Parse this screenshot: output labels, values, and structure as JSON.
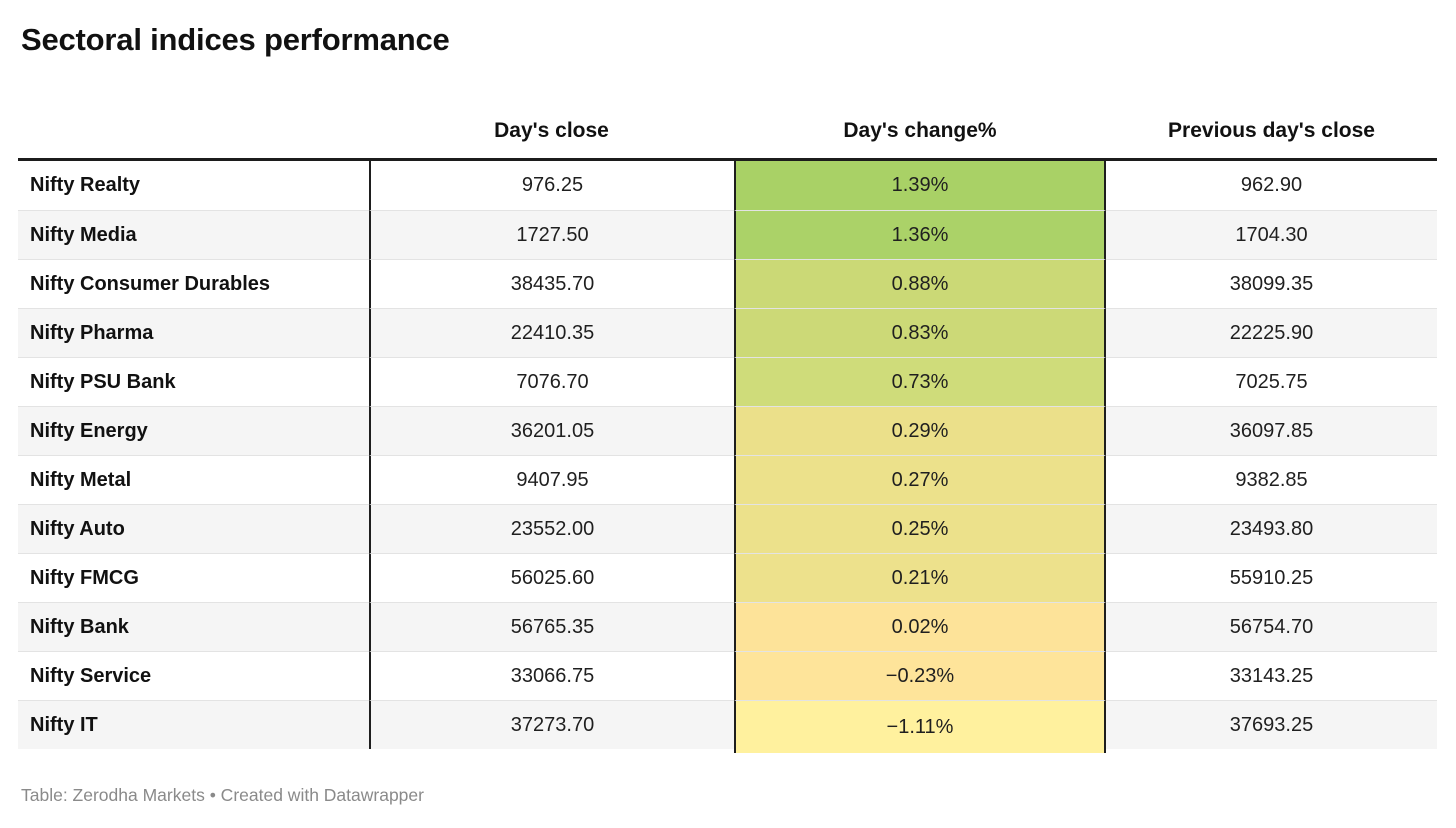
{
  "title": "Sectoral indices performance",
  "footer": "Table: Zerodha Markets • Created with Datawrapper",
  "colors": {
    "header_rule": "#1c1c1c",
    "column_divider": "#1e1e1e",
    "row_alt_bg": "#f5f5f5",
    "row_separator": "#e3e3e3",
    "footer_text": "#8a8a8a"
  },
  "chart_data": {
    "type": "table",
    "title": "Sectoral indices performance",
    "columns": [
      "",
      "Day's close",
      "Day's change%",
      "Previous day's close"
    ],
    "heatmap_column": "Day's change%",
    "rows": [
      {
        "index": "Nifty Realty",
        "days_close": "976.25",
        "days_change_pct": "1.39%",
        "prev_close": "962.90",
        "change_cell_color": "#a9d166"
      },
      {
        "index": "Nifty Media",
        "days_close": "1727.50",
        "days_change_pct": "1.36%",
        "prev_close": "1704.30",
        "change_cell_color": "#abd268"
      },
      {
        "index": "Nifty Consumer Durables",
        "days_close": "38435.70",
        "days_change_pct": "0.88%",
        "prev_close": "38099.35",
        "change_cell_color": "#cbd976"
      },
      {
        "index": "Nifty Pharma",
        "days_close": "22410.35",
        "days_change_pct": "0.83%",
        "prev_close": "22225.90",
        "change_cell_color": "#ccd977"
      },
      {
        "index": "Nifty PSU Bank",
        "days_close": "7076.70",
        "days_change_pct": "0.73%",
        "prev_close": "7025.75",
        "change_cell_color": "#cfdc7a"
      },
      {
        "index": "Nifty Energy",
        "days_close": "36201.05",
        "days_change_pct": "0.29%",
        "prev_close": "36097.85",
        "change_cell_color": "#ebe08a"
      },
      {
        "index": "Nifty Metal",
        "days_close": "9407.95",
        "days_change_pct": "0.27%",
        "prev_close": "9382.85",
        "change_cell_color": "#ece18b"
      },
      {
        "index": "Nifty Auto",
        "days_close": "23552.00",
        "days_change_pct": "0.25%",
        "prev_close": "23493.80",
        "change_cell_color": "#ece18b"
      },
      {
        "index": "Nifty FMCG",
        "days_close": "56025.60",
        "days_change_pct": "0.21%",
        "prev_close": "55910.25",
        "change_cell_color": "#ede18c"
      },
      {
        "index": "Nifty Bank",
        "days_close": "56765.35",
        "days_change_pct": "0.02%",
        "prev_close": "56754.70",
        "change_cell_color": "#fde399"
      },
      {
        "index": "Nifty Service",
        "days_close": "33066.75",
        "days_change_pct": "−0.23%",
        "prev_close": "33143.25",
        "change_cell_color": "#fee49a"
      },
      {
        "index": "Nifty IT",
        "days_close": "37273.70",
        "days_change_pct": "−1.11%",
        "prev_close": "37693.25",
        "change_cell_color": "#fff19e"
      }
    ]
  }
}
